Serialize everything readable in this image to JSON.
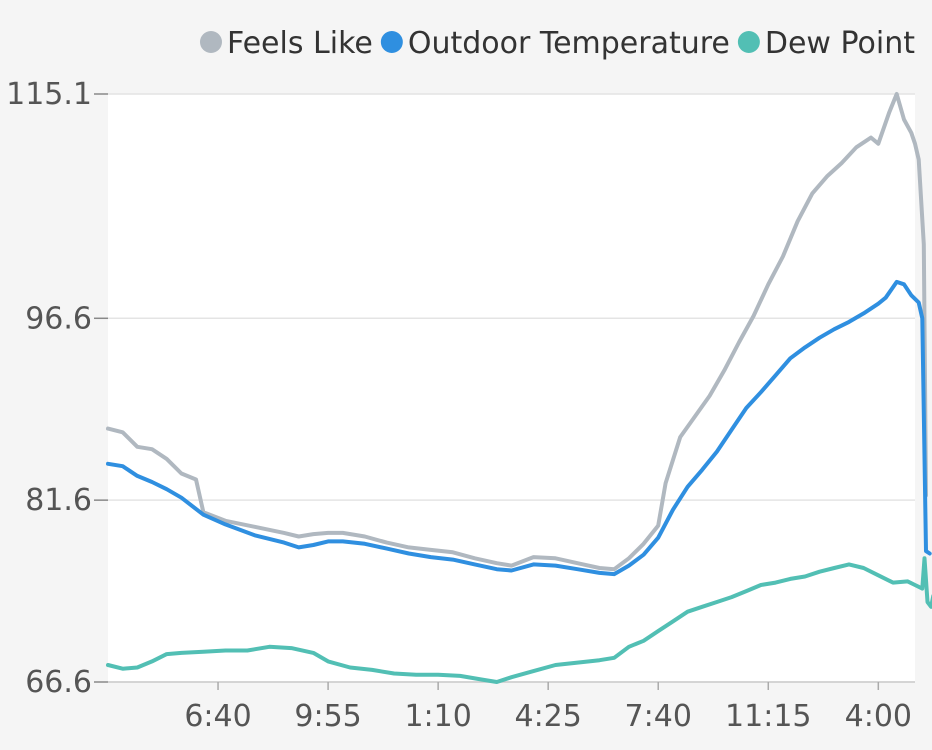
{
  "chart_data": {
    "type": "line",
    "title": "",
    "xlabel": "",
    "ylabel": "",
    "ylim": [
      66.6,
      115.1
    ],
    "yticks": [
      "115.1",
      "96.6",
      "81.6",
      "66.6"
    ],
    "ytick_values": [
      115.1,
      96.6,
      81.6,
      66.6
    ],
    "xticks": [
      "6:40",
      "9:55",
      "1:10",
      "4:25",
      "7:40",
      "11:15",
      "4:00"
    ],
    "xtick_positions": [
      1.5,
      3.0,
      4.5,
      6.0,
      7.5,
      9.0,
      10.5
    ],
    "xlim": [
      0,
      11.0
    ],
    "grid": true,
    "legend_position": "top-right",
    "series": [
      {
        "name": "Feels Like",
        "color": "#b0b8c0",
        "points": [
          [
            0,
            87.5
          ],
          [
            0.2,
            87.2
          ],
          [
            0.4,
            86.0
          ],
          [
            0.6,
            85.8
          ],
          [
            0.8,
            85.0
          ],
          [
            1.0,
            83.8
          ],
          [
            1.2,
            83.3
          ],
          [
            1.3,
            80.6
          ],
          [
            1.6,
            79.9
          ],
          [
            2.0,
            79.4
          ],
          [
            2.4,
            78.9
          ],
          [
            2.6,
            78.6
          ],
          [
            2.8,
            78.8
          ],
          [
            3.0,
            78.9
          ],
          [
            3.2,
            78.9
          ],
          [
            3.5,
            78.6
          ],
          [
            3.8,
            78.1
          ],
          [
            4.1,
            77.7
          ],
          [
            4.4,
            77.5
          ],
          [
            4.7,
            77.3
          ],
          [
            5.0,
            76.8
          ],
          [
            5.3,
            76.4
          ],
          [
            5.5,
            76.2
          ],
          [
            5.8,
            76.9
          ],
          [
            6.1,
            76.8
          ],
          [
            6.4,
            76.4
          ],
          [
            6.7,
            76.0
          ],
          [
            6.9,
            75.9
          ],
          [
            7.1,
            76.8
          ],
          [
            7.3,
            78.0
          ],
          [
            7.5,
            79.5
          ],
          [
            7.6,
            83.0
          ],
          [
            7.8,
            86.8
          ],
          [
            8.0,
            88.5
          ],
          [
            8.2,
            90.2
          ],
          [
            8.4,
            92.3
          ],
          [
            8.6,
            94.6
          ],
          [
            8.8,
            96.8
          ],
          [
            9.0,
            99.4
          ],
          [
            9.2,
            101.7
          ],
          [
            9.4,
            104.6
          ],
          [
            9.6,
            106.9
          ],
          [
            9.8,
            108.3
          ],
          [
            10.0,
            109.4
          ],
          [
            10.2,
            110.7
          ],
          [
            10.4,
            111.5
          ],
          [
            10.5,
            111.0
          ],
          [
            10.65,
            113.6
          ],
          [
            10.75,
            115.1
          ],
          [
            10.85,
            113.0
          ],
          [
            10.95,
            111.9
          ],
          [
            11.0,
            111.0
          ],
          [
            11.05,
            109.7
          ],
          [
            11.12,
            102.7
          ],
          [
            11.15,
            82.0
          ]
        ]
      },
      {
        "name": "Outdoor Temperature",
        "color": "#2f8fe0",
        "points": [
          [
            0,
            84.6
          ],
          [
            0.2,
            84.4
          ],
          [
            0.4,
            83.6
          ],
          [
            0.6,
            83.1
          ],
          [
            0.8,
            82.5
          ],
          [
            1.0,
            81.8
          ],
          [
            1.3,
            80.4
          ],
          [
            1.6,
            79.6
          ],
          [
            2.0,
            78.7
          ],
          [
            2.4,
            78.1
          ],
          [
            2.6,
            77.7
          ],
          [
            2.8,
            77.9
          ],
          [
            3.0,
            78.2
          ],
          [
            3.2,
            78.2
          ],
          [
            3.5,
            78.0
          ],
          [
            3.8,
            77.6
          ],
          [
            4.1,
            77.2
          ],
          [
            4.4,
            76.9
          ],
          [
            4.7,
            76.7
          ],
          [
            5.0,
            76.3
          ],
          [
            5.3,
            75.9
          ],
          [
            5.5,
            75.8
          ],
          [
            5.8,
            76.3
          ],
          [
            6.1,
            76.2
          ],
          [
            6.4,
            75.9
          ],
          [
            6.7,
            75.6
          ],
          [
            6.9,
            75.5
          ],
          [
            7.1,
            76.2
          ],
          [
            7.3,
            77.1
          ],
          [
            7.5,
            78.5
          ],
          [
            7.7,
            80.8
          ],
          [
            7.9,
            82.7
          ],
          [
            8.1,
            84.1
          ],
          [
            8.3,
            85.6
          ],
          [
            8.5,
            87.4
          ],
          [
            8.7,
            89.2
          ],
          [
            8.9,
            90.5
          ],
          [
            9.1,
            91.9
          ],
          [
            9.3,
            93.3
          ],
          [
            9.5,
            94.2
          ],
          [
            9.7,
            95.0
          ],
          [
            9.9,
            95.7
          ],
          [
            10.1,
            96.3
          ],
          [
            10.3,
            97.0
          ],
          [
            10.5,
            97.8
          ],
          [
            10.6,
            98.3
          ],
          [
            10.75,
            99.6
          ],
          [
            10.85,
            99.4
          ],
          [
            10.95,
            98.5
          ],
          [
            11.05,
            97.9
          ],
          [
            11.1,
            96.6
          ],
          [
            11.15,
            77.4
          ],
          [
            11.2,
            77.2
          ]
        ]
      },
      {
        "name": "Dew Point",
        "color": "#52bfb4",
        "points": [
          [
            0,
            68.0
          ],
          [
            0.2,
            67.7
          ],
          [
            0.4,
            67.8
          ],
          [
            0.6,
            68.3
          ],
          [
            0.8,
            68.9
          ],
          [
            1.0,
            69.0
          ],
          [
            1.3,
            69.1
          ],
          [
            1.6,
            69.2
          ],
          [
            1.9,
            69.2
          ],
          [
            2.2,
            69.5
          ],
          [
            2.5,
            69.4
          ],
          [
            2.8,
            69.0
          ],
          [
            3.0,
            68.3
          ],
          [
            3.3,
            67.8
          ],
          [
            3.6,
            67.6
          ],
          [
            3.9,
            67.3
          ],
          [
            4.2,
            67.2
          ],
          [
            4.5,
            67.2
          ],
          [
            4.8,
            67.1
          ],
          [
            5.1,
            66.8
          ],
          [
            5.3,
            66.6
          ],
          [
            5.5,
            67.0
          ],
          [
            5.8,
            67.5
          ],
          [
            6.1,
            68.0
          ],
          [
            6.4,
            68.2
          ],
          [
            6.7,
            68.4
          ],
          [
            6.9,
            68.6
          ],
          [
            7.1,
            69.5
          ],
          [
            7.3,
            70.0
          ],
          [
            7.5,
            70.8
          ],
          [
            7.7,
            71.6
          ],
          [
            7.9,
            72.4
          ],
          [
            8.1,
            72.8
          ],
          [
            8.3,
            73.2
          ],
          [
            8.5,
            73.6
          ],
          [
            8.7,
            74.1
          ],
          [
            8.9,
            74.6
          ],
          [
            9.1,
            74.8
          ],
          [
            9.3,
            75.1
          ],
          [
            9.5,
            75.3
          ],
          [
            9.7,
            75.7
          ],
          [
            9.9,
            76.0
          ],
          [
            10.1,
            76.3
          ],
          [
            10.3,
            76.0
          ],
          [
            10.5,
            75.4
          ],
          [
            10.7,
            74.8
          ],
          [
            10.9,
            74.9
          ],
          [
            11.0,
            74.6
          ],
          [
            11.1,
            74.3
          ],
          [
            11.13,
            76.8
          ],
          [
            11.17,
            73.2
          ],
          [
            11.22,
            72.8
          ],
          [
            11.25,
            73.7
          ]
        ]
      }
    ]
  }
}
